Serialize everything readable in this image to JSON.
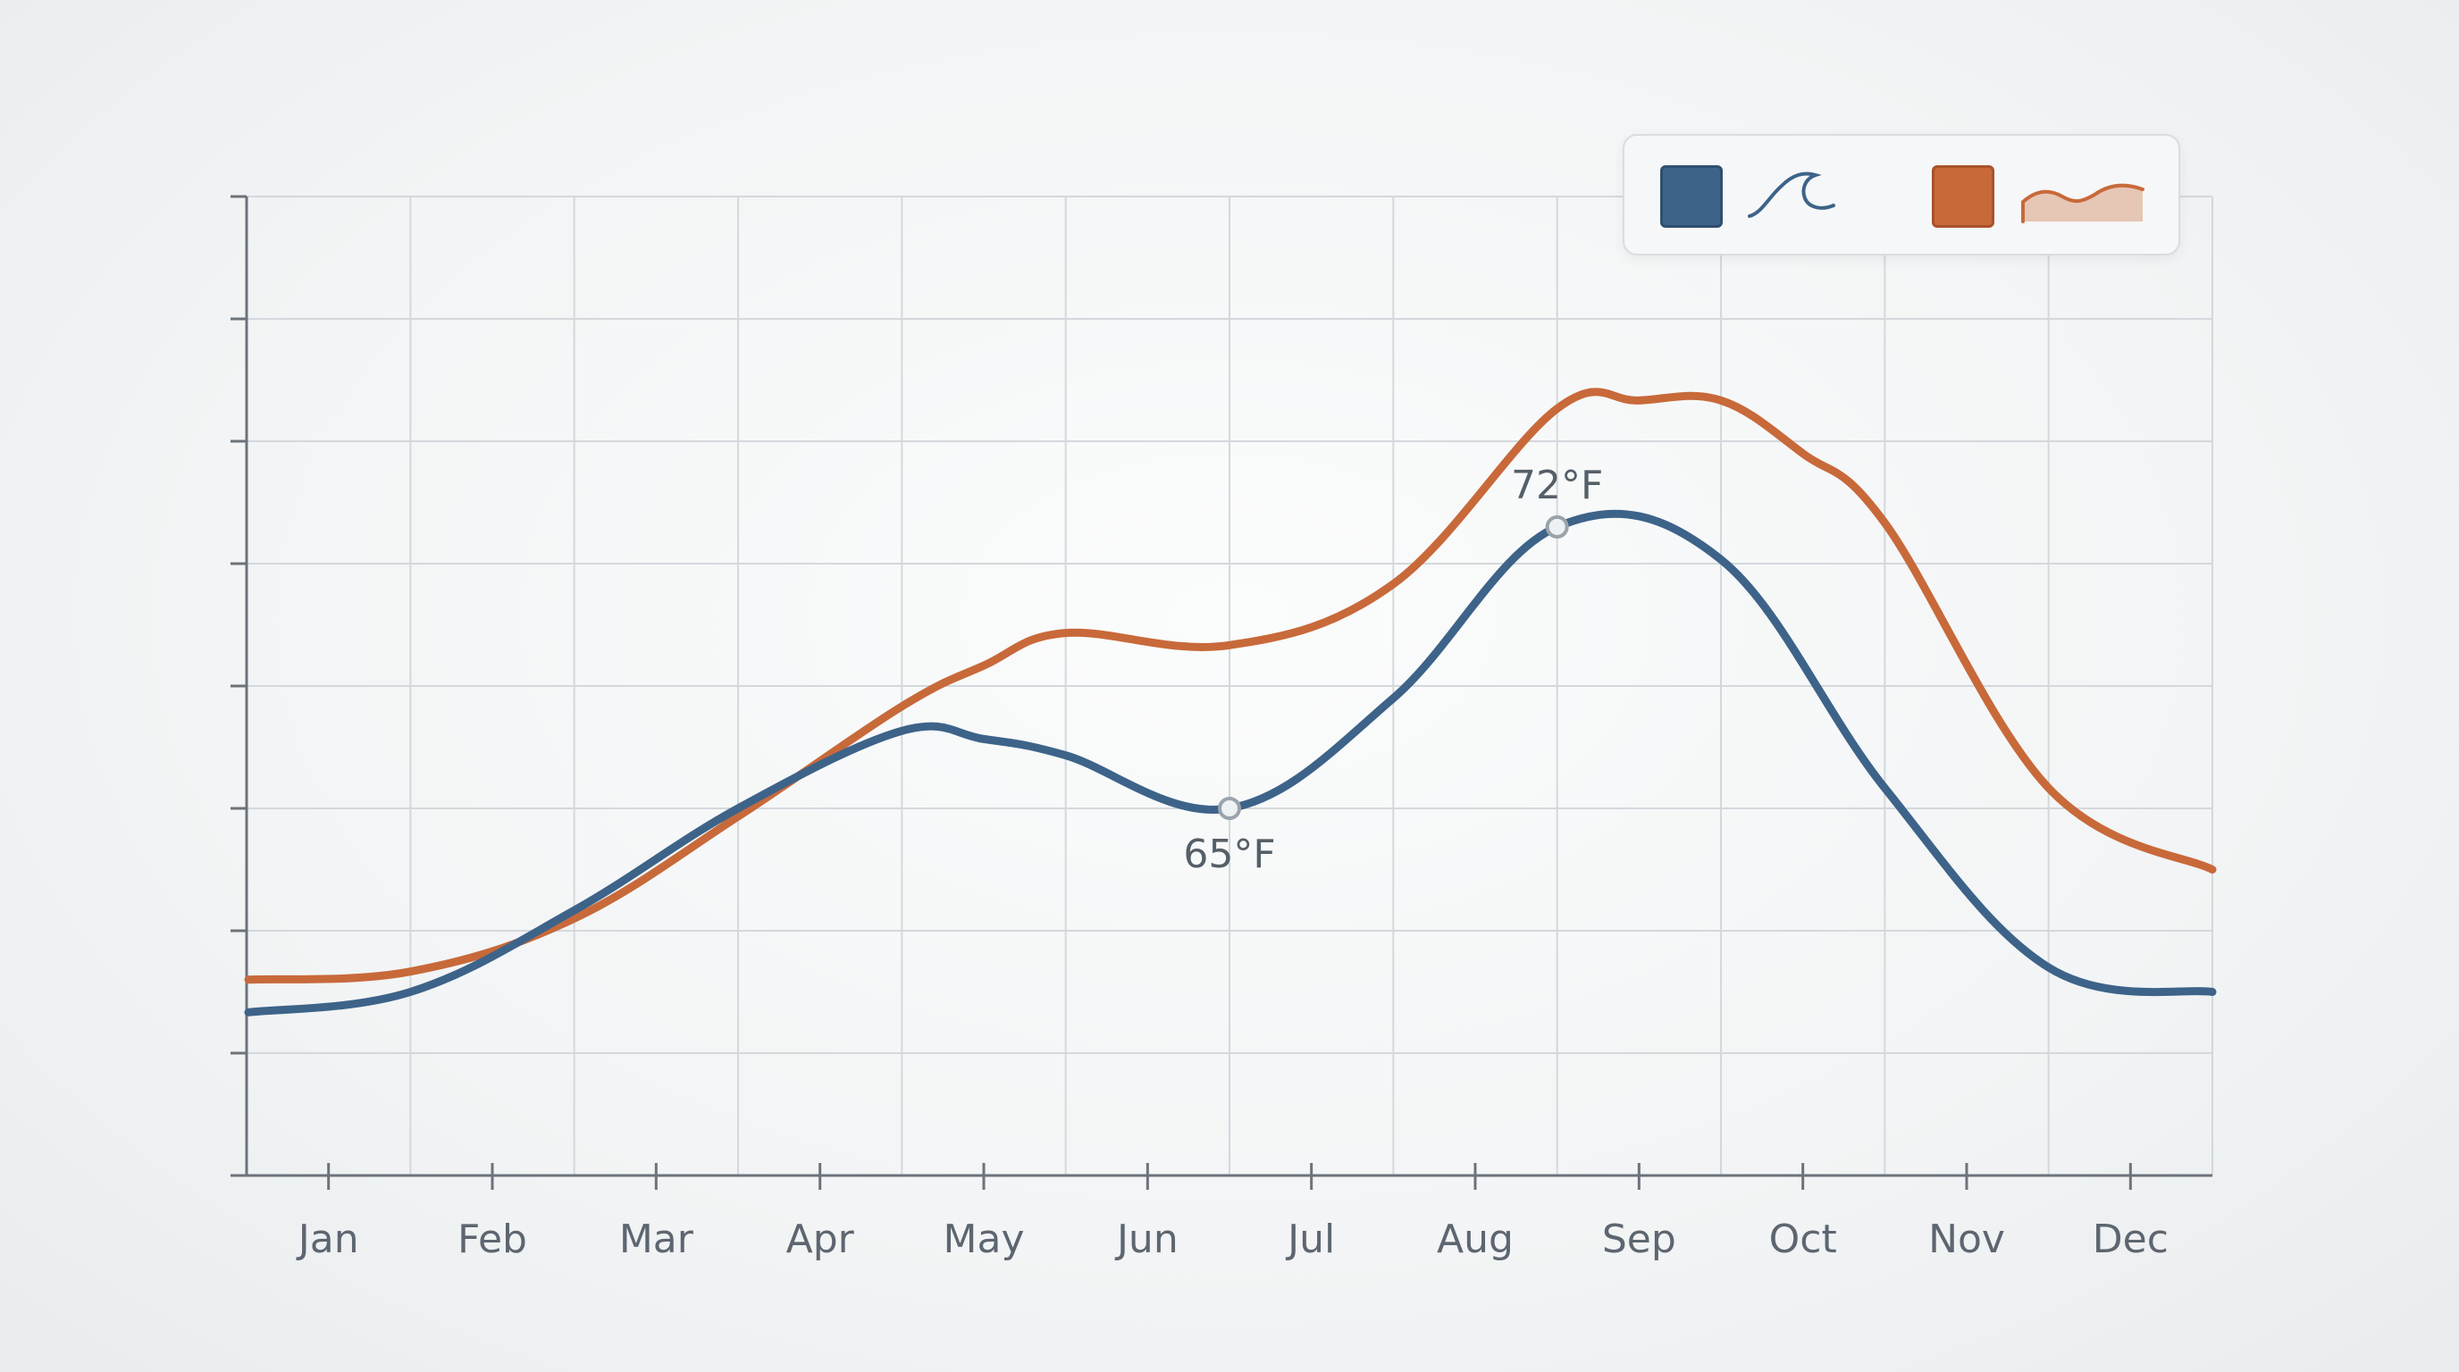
{
  "chart_data": {
    "type": "line",
    "title": "",
    "xlabel": "",
    "ylabel": "",
    "categories": [
      "Jan",
      "Feb",
      "Mar",
      "Apr",
      "May",
      "Jun",
      "Jul",
      "Aug",
      "Sep",
      "Oct",
      "Nov",
      "Dec"
    ],
    "ylim": [
      56,
      80
    ],
    "yticks": [
      56,
      59,
      62,
      65,
      68,
      71,
      74,
      77,
      80
    ],
    "grid": true,
    "legend_position": "top-right",
    "series": [
      {
        "color": "#3d6389",
        "legend_icon": "wave-icon",
        "x": [
          0.5,
          1.0,
          2.0,
          3.0,
          4.0,
          4.5,
          5.0,
          6.0,
          7.0,
          8.0,
          9.0,
          10.0,
          11.0,
          11.5
        ],
        "values": [
          60.0,
          60.5,
          62.5,
          65.0,
          66.9,
          66.7,
          66.3,
          65.0,
          67.7,
          71.9,
          71.1,
          65.5,
          61.1,
          60.5
        ]
      },
      {
        "color": "#c8693a",
        "legend_icon": "area-wave-icon",
        "x": [
          0.5,
          1.0,
          2.0,
          3.0,
          4.0,
          4.5,
          5.0,
          6.0,
          7.0,
          8.0,
          8.5,
          9.0,
          9.5,
          10.0,
          11.0,
          11.5
        ],
        "values": [
          60.8,
          61.0,
          62.3,
          64.8,
          67.5,
          68.5,
          69.3,
          69.0,
          70.5,
          74.8,
          75.0,
          75.0,
          73.7,
          72.0,
          65.5,
          63.5
        ]
      }
    ],
    "annotations": [
      {
        "text": "65°F",
        "series": 0,
        "x": 6.0,
        "y": 65.0,
        "position": "below"
      },
      {
        "text": "72°F",
        "series": 0,
        "x": 8.0,
        "y": 71.9,
        "position": "above"
      }
    ]
  },
  "colors": {
    "axis": "#6b737b",
    "grid": "#d3d8dc",
    "marker_stroke": "#9aa3ab",
    "marker_fill": "#eef1f3"
  }
}
